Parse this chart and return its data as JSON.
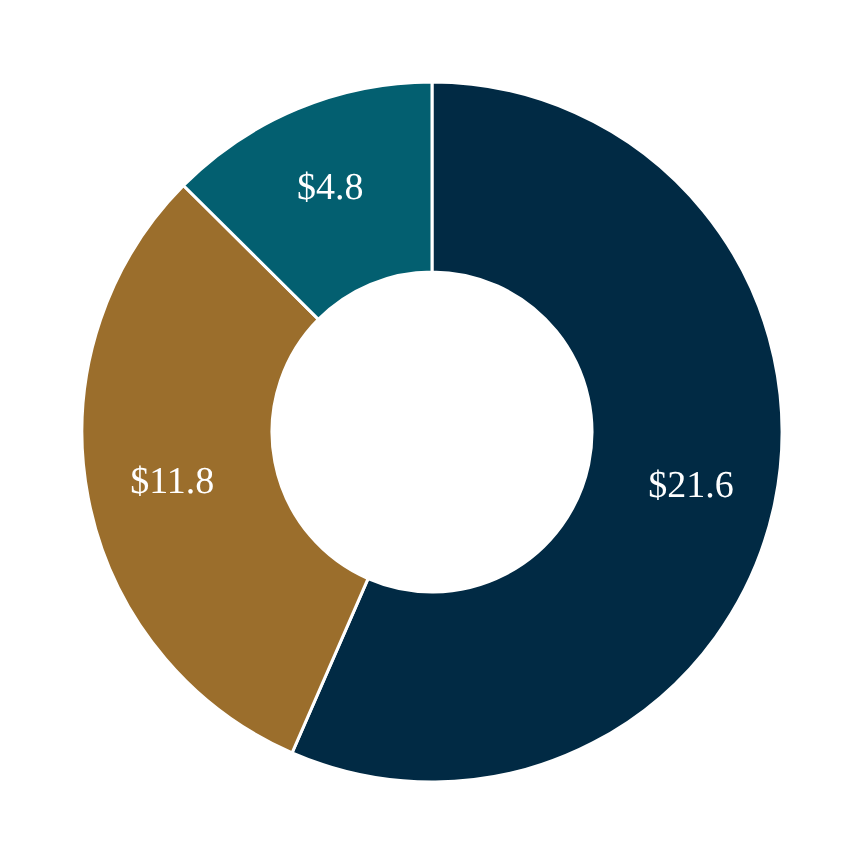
{
  "chart_data": {
    "type": "donut",
    "categories": [
      null,
      null,
      null
    ],
    "values": [
      21.6,
      11.8,
      4.8
    ],
    "colors": [
      "#012a44",
      "#9b6e2c",
      "#035f70"
    ],
    "value_labels": [
      "$21.6",
      "$11.8",
      "$4.8"
    ]
  }
}
